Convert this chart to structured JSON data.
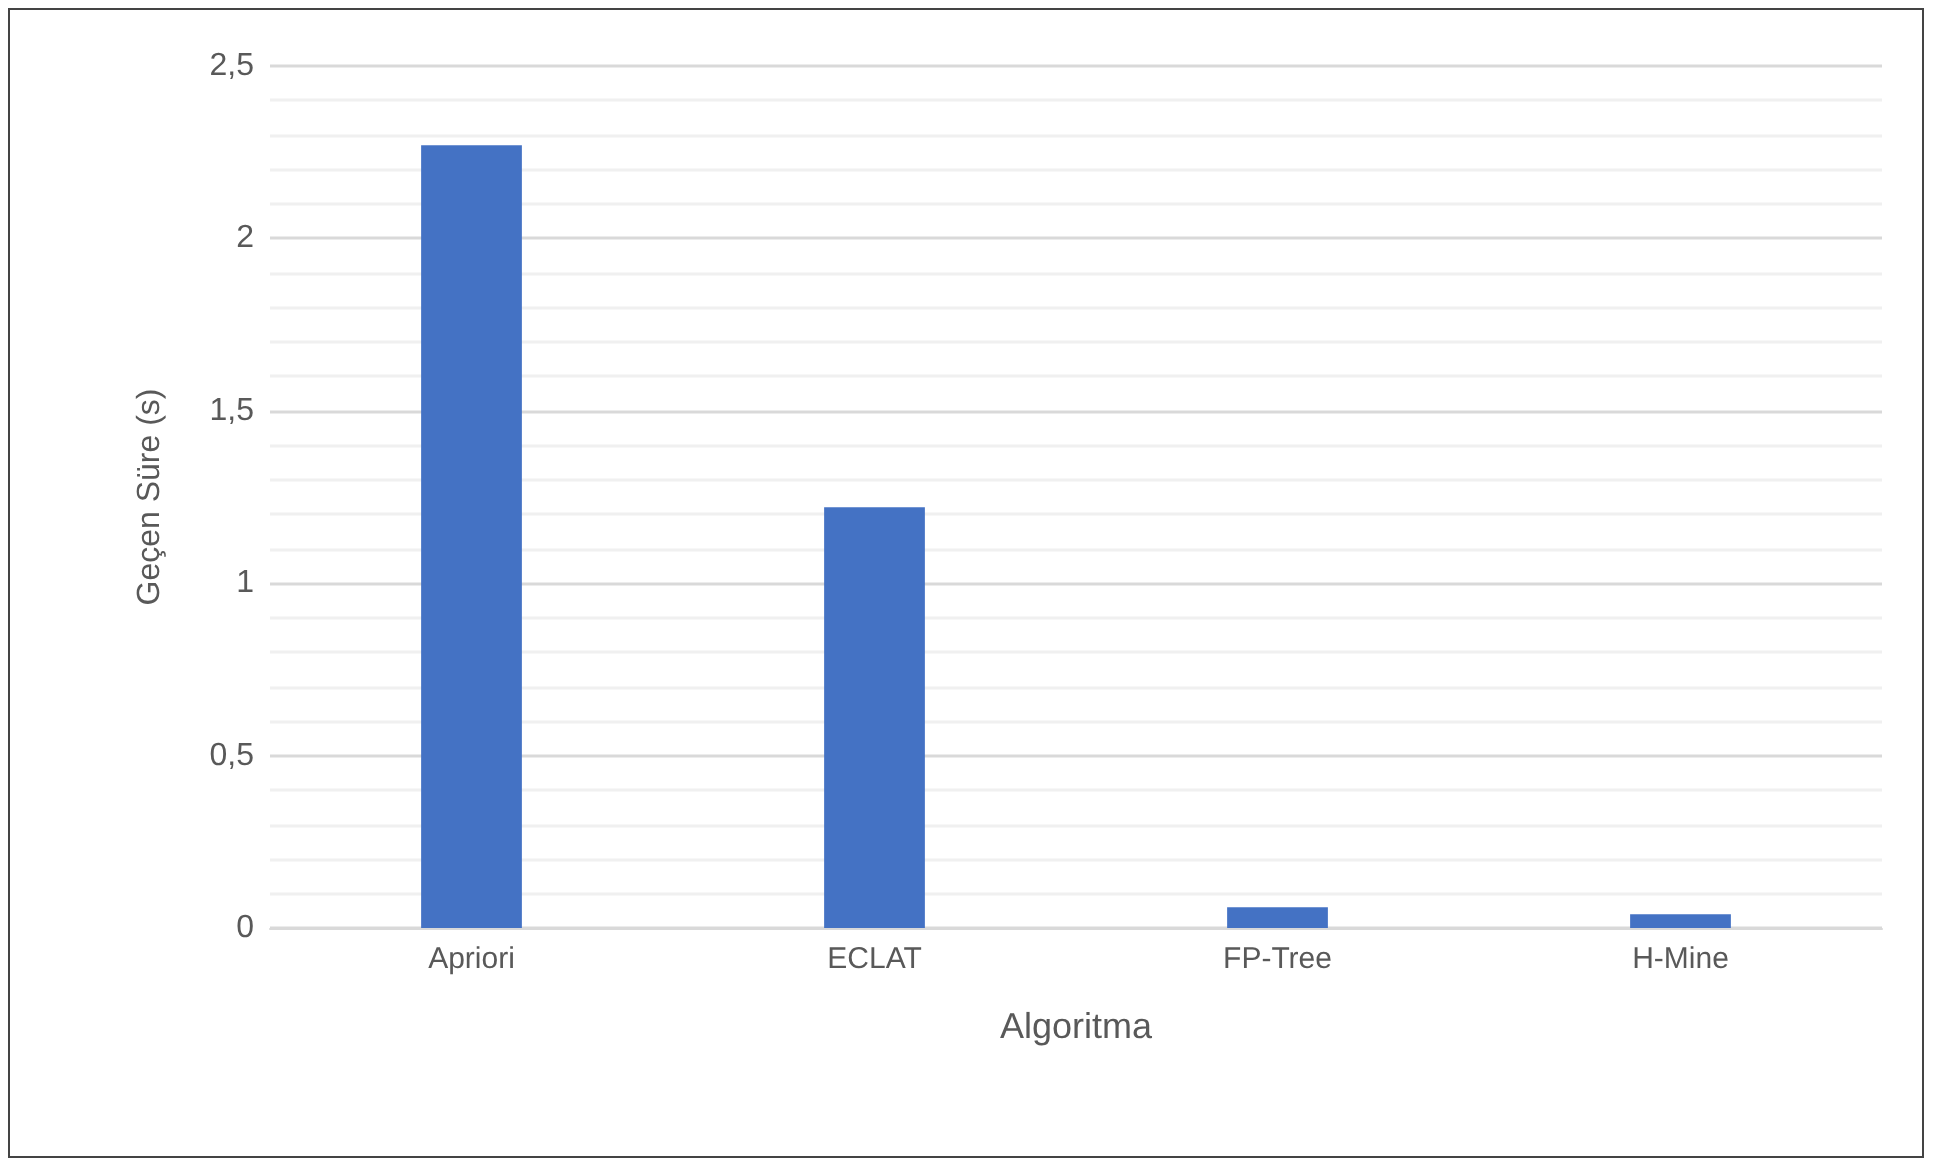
{
  "chart_data": {
    "type": "bar",
    "xlabel": "Algoritma",
    "ylabel": "Geçen Süre (s)",
    "categories": [
      "Apriori",
      "ECLAT",
      "FP-Tree",
      "H-Mine"
    ],
    "values": [
      2.27,
      1.22,
      0.06,
      0.04
    ],
    "color": "#4472c4",
    "ylim": [
      0,
      2.5
    ],
    "yticks": [
      0,
      {
        "value": 0.5,
        "label": "0,5"
      },
      1,
      {
        "value": 1.5,
        "label": "1,5"
      },
      2,
      {
        "value": 2.5,
        "label": "2,5"
      }
    ],
    "grid": "y"
  }
}
